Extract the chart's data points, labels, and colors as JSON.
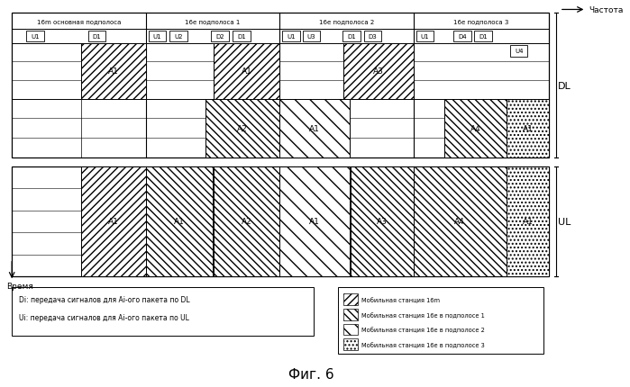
{
  "title": "Фиг. 6",
  "freq_label": "Частота",
  "time_label": "Время",
  "DL_label": "DL",
  "UL_label": "UL",
  "subband_labels": [
    "16m основная подполоса",
    "16е подполоса 1",
    "16е подполоса 2",
    "16е подполоса 3"
  ],
  "note_lines": [
    "Di: передача сигналов для Ai-ого пакета по DL",
    "Ui: передача сигналов для Ai-ого пакета по UL"
  ],
  "legend_labels": [
    "Мобильная станция 16m",
    "Мобильная станция 16е в подполосе 1",
    "Мобильная станция 16е в подполосе 2",
    "Мобильная станция 16е в подполосе 3"
  ],
  "background_color": "#ffffff"
}
